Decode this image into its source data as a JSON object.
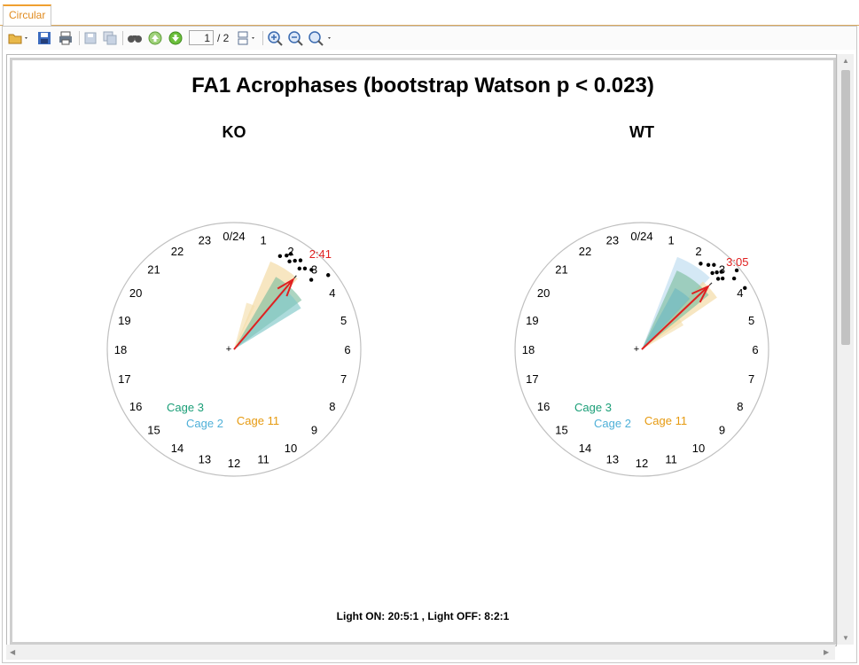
{
  "tab": {
    "label": "Circular"
  },
  "toolbar": {
    "page_current": "1",
    "page_total": "/ 2",
    "icons": [
      "open-folder-icon",
      "save-icon",
      "print-icon",
      "export-icon",
      "export-all-icon",
      "find-icon",
      "previous-page-icon",
      "next-page-icon",
      "page-layout-icon",
      "zoom-in-icon",
      "zoom-out-icon",
      "zoom-dropdown-icon"
    ]
  },
  "chart": {
    "title": "FA1 Acrophases (bootstrap Watson p < 0.023)",
    "footer": "Light ON:  20:5:1 , Light OFF:  8:2:1",
    "hour_labels": [
      "0/24",
      "1",
      "2",
      "3",
      "4",
      "5",
      "6",
      "7",
      "8",
      "9",
      "10",
      "11",
      "12",
      "13",
      "14",
      "15",
      "16",
      "17",
      "18",
      "19",
      "20",
      "21",
      "22",
      "23"
    ],
    "panels": [
      {
        "label": "KO",
        "mean_label": "2:41",
        "mean_hour": 2.68,
        "cage_labels": [
          "Cage 3",
          "Cage 2",
          "Cage 11"
        ],
        "sectors": [
          {
            "cage": "Cage 11",
            "from_hour": 1.5,
            "to_hour": 2.8,
            "radius": 0.75,
            "color": "#f2d9a0"
          },
          {
            "cage": "Cage 11",
            "from_hour": 1.0,
            "to_hour": 1.7,
            "radius": 0.38,
            "color": "#f5dfae"
          },
          {
            "cage": "Cage 3",
            "from_hour": 2.0,
            "to_hour": 3.6,
            "radius": 0.66,
            "color": "#7fbf9f"
          },
          {
            "cage": "Cage 2",
            "from_hour": 2.6,
            "to_hour": 3.9,
            "radius": 0.62,
            "color": "#7fc8c8"
          }
        ],
        "points_hour": [
          1.75,
          1.95,
          2.05,
          2.15,
          2.3,
          2.45,
          2.6,
          2.75,
          2.95,
          3.2,
          3.45
        ]
      },
      {
        "label": "WT",
        "mean_label": "3:05",
        "mean_hour": 3.1,
        "cage_labels": [
          "Cage 3",
          "Cage 2",
          "Cage 11"
        ],
        "sectors": [
          {
            "cage": "Cage 2",
            "from_hour": 1.4,
            "to_hour": 2.9,
            "radius": 0.78,
            "color": "#bddcf0"
          },
          {
            "cage": "Cage 11",
            "from_hour": 3.0,
            "to_hour": 4.0,
            "radius": 0.38,
            "color": "#f5dfae"
          },
          {
            "cage": "Cage 11",
            "from_hour": 2.8,
            "to_hour": 3.7,
            "radius": 0.72,
            "color": "#f2d9a0"
          },
          {
            "cage": "Cage 3",
            "from_hour": 1.6,
            "to_hour": 3.4,
            "radius": 0.68,
            "color": "#7fbf9f"
          },
          {
            "cage": "Cage 2",
            "from_hour": 1.9,
            "to_hour": 2.9,
            "radius": 0.55,
            "color": "#6fb8c2"
          }
        ],
        "points_hour": [
          2.3,
          2.55,
          2.7,
          2.85,
          2.95,
          3.05,
          3.15,
          3.25,
          3.35,
          3.5,
          3.95
        ]
      }
    ],
    "colors": {
      "ring": "#c0c0c0",
      "mean_arrow": "#e02020",
      "mean_text": "#e02020",
      "cage3": "#1a9e77",
      "cage2": "#4fb0d8",
      "cage11": "#e69a10",
      "points": "#000000"
    }
  }
}
